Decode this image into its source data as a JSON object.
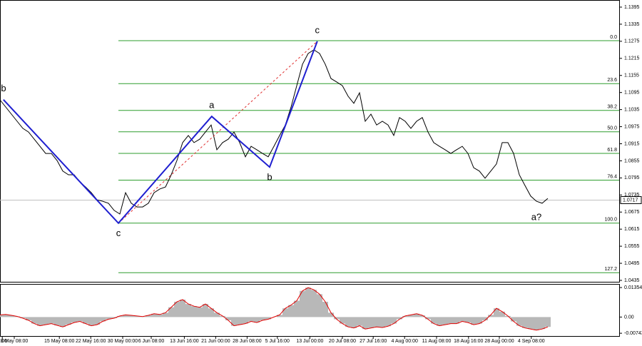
{
  "chart_data": {
    "type": "line",
    "x": [
      0,
      1,
      2,
      3,
      4,
      5,
      6,
      7,
      8,
      9,
      10,
      11,
      12,
      13,
      14,
      15,
      16,
      17,
      18,
      19,
      20,
      21,
      22,
      23,
      24,
      25,
      26,
      27,
      28,
      29,
      30,
      31,
      32,
      33,
      34,
      35,
      36,
      37,
      38,
      39,
      40,
      41,
      42,
      43,
      44,
      45,
      46,
      47,
      48,
      49,
      50,
      51,
      52,
      53,
      54,
      55,
      56,
      57,
      58,
      59,
      60,
      61,
      62,
      63,
      64,
      65,
      66,
      67,
      68,
      69,
      70,
      71,
      72,
      73,
      74,
      75,
      76,
      77,
      78,
      79,
      80,
      81,
      82,
      83,
      84,
      85,
      86,
      87,
      88,
      89,
      90,
      91,
      92,
      93,
      94,
      95,
      96
    ],
    "series": [
      {
        "color": "#000000",
        "values": [
          1.1069,
          1.1044,
          1.1019,
          1.0994,
          1.0969,
          1.0956,
          1.0931,
          1.0906,
          1.0881,
          1.0881,
          1.0856,
          1.0819,
          1.0806,
          1.0806,
          1.0781,
          1.0763,
          1.0743,
          1.0718,
          1.0713,
          1.0706,
          1.0681,
          1.0668,
          1.0743,
          1.0706,
          1.0693,
          1.0693,
          1.0706,
          1.0743,
          1.0756,
          1.0763,
          1.0806,
          1.0856,
          1.0919,
          1.0944,
          1.0919,
          1.0931,
          1.0956,
          1.0981,
          1.0894,
          1.0919,
          1.0931,
          1.0956,
          1.0919,
          1.0869,
          1.0906,
          1.0894,
          1.0881,
          1.0869,
          1.0906,
          1.0944,
          1.0981,
          1.1044,
          1.1119,
          1.1194,
          1.1232,
          1.1245,
          1.1232,
          1.1194,
          1.1144,
          1.1132,
          1.1119,
          1.1082,
          1.1057,
          1.1094,
          1.0994,
          1.1019,
          1.0981,
          1.0994,
          1.0981,
          1.0944,
          1.1007,
          1.0994,
          1.0969,
          1.0994,
          1.1007,
          1.0956,
          1.0919,
          1.0906,
          1.0894,
          1.0881,
          1.0894,
          1.0906,
          1.0881,
          1.0831,
          1.0819,
          1.0794,
          1.0819,
          1.0844,
          1.0919,
          1.0919,
          1.0881,
          1.0806,
          1.0768,
          1.0731,
          1.0713,
          1.0706,
          1.0723
        ]
      }
    ],
    "xlim": [
      0,
      108.5
    ],
    "xticks": [
      {
        "value": 0.4,
        "label": "6:00"
      },
      {
        "value": 2.5,
        "label": "8 May 08:00"
      },
      {
        "value": 10.4,
        "label": "15 May 08:00"
      },
      {
        "value": 15.9,
        "label": "22 May 16:00"
      },
      {
        "value": 21.5,
        "label": "30 May 00:00"
      },
      {
        "value": 26.5,
        "label": "6 Jun 08:00"
      },
      {
        "value": 32.3,
        "label": "13 Jun 16:00"
      },
      {
        "value": 37.8,
        "label": "21 Jun 00:00"
      },
      {
        "value": 43.3,
        "label": "28 Jun 08:00"
      },
      {
        "value": 48.6,
        "label": "5 Jul 16:00"
      },
      {
        "value": 54.3,
        "label": "13 Jul 00:00"
      },
      {
        "value": 60,
        "label": "20 Jul 08:00"
      },
      {
        "value": 65.4,
        "label": "27 Jul 16:00"
      },
      {
        "value": 70.9,
        "label": "4 Aug 00:00"
      },
      {
        "value": 76.5,
        "label": "11 Aug 08:00"
      },
      {
        "value": 82.1,
        "label": "18 Aug 16:00"
      },
      {
        "value": 87.5,
        "label": "28 Aug 00:00"
      },
      {
        "value": 93.1,
        "label": "4 Sep 08:00"
      }
    ],
    "ylim": [
      1.043,
      1.142
    ],
    "yticks": [
      1.1395,
      1.1335,
      1.1275,
      1.1215,
      1.1155,
      1.1095,
      1.1035,
      1.0975,
      1.0915,
      1.0855,
      1.0795,
      1.0735,
      1.0675,
      1.0615,
      1.0555,
      1.0495,
      1.0435
    ],
    "last_price": 1.0717,
    "fib_levels": [
      {
        "label": "0.0",
        "value": 1.1277
      },
      {
        "label": "23.6",
        "value": 1.1126
      },
      {
        "label": "38.2",
        "value": 1.1032
      },
      {
        "label": "50.0",
        "value": 1.0957
      },
      {
        "label": "61.8",
        "value": 1.0881
      },
      {
        "label": "76.4",
        "value": 1.0787
      },
      {
        "label": "100.0",
        "value": 1.0636
      },
      {
        "label": "127.2",
        "value": 1.0462
      }
    ],
    "fib_color": "#2e9e2e",
    "waves": [
      {
        "label": "b",
        "x": 0.6,
        "y": 1.107,
        "pos": "above"
      },
      {
        "label": "c",
        "x": 20.75,
        "y": 1.0636,
        "pos": "below"
      },
      {
        "label": "a",
        "x": 37.1,
        "y": 1.1011,
        "pos": "above"
      },
      {
        "label": "b",
        "x": 47.25,
        "y": 1.0833,
        "pos": "below"
      },
      {
        "label": "c",
        "x": 55.6,
        "y": 1.1275,
        "pos": "above"
      }
    ],
    "wave_color": "#1f1fd0",
    "forecast_label": {
      "label": "a?",
      "x": 94,
      "y": 1.0693
    },
    "oscillator": {
      "color": "#e00000",
      "fill": "#b8b8b8",
      "values": [
        0.001,
        0.0012,
        0.0008,
        0.0003,
        -0.0005,
        -0.0015,
        -0.003,
        -0.004,
        -0.0035,
        -0.003,
        -0.0038,
        -0.0045,
        -0.0035,
        -0.0025,
        -0.002,
        -0.003,
        -0.004,
        -0.0035,
        -0.002,
        -0.001,
        -0.0005,
        0.0005,
        0.001,
        0.0008,
        0.0005,
        0.0002,
        0.0008,
        0.0015,
        0.0012,
        0.002,
        0.0045,
        0.007,
        0.008,
        0.006,
        0.005,
        0.0045,
        0.006,
        0.004,
        0.002,
        0.0005,
        -0.0015,
        -0.004,
        -0.0035,
        -0.003,
        -0.002,
        -0.0025,
        -0.0015,
        -0.001,
        0.0,
        0.001,
        0.004,
        0.0055,
        0.0075,
        0.012,
        0.0135,
        0.0125,
        0.0105,
        0.007,
        0.002,
        -0.001,
        -0.003,
        -0.0045,
        -0.005,
        -0.004,
        -0.0055,
        -0.005,
        -0.0045,
        -0.0048,
        -0.0042,
        -0.003,
        -0.001,
        0.0005,
        0.001,
        0.0015,
        0.0008,
        -0.001,
        -0.003,
        -0.004,
        -0.0035,
        -0.003,
        -0.003,
        -0.002,
        -0.0025,
        -0.0035,
        -0.003,
        -0.0015,
        0.001,
        0.004,
        0.0025,
        0.0005,
        -0.002,
        -0.004,
        -0.005,
        -0.0055,
        -0.006,
        -0.0055,
        -0.0045
      ],
      "ylim": [
        -0.0087,
        0.0152
      ],
      "yticks": [
        0.01354,
        {
          "value": 0,
          "label": "0.00"
        },
        -0.00743
      ]
    }
  }
}
